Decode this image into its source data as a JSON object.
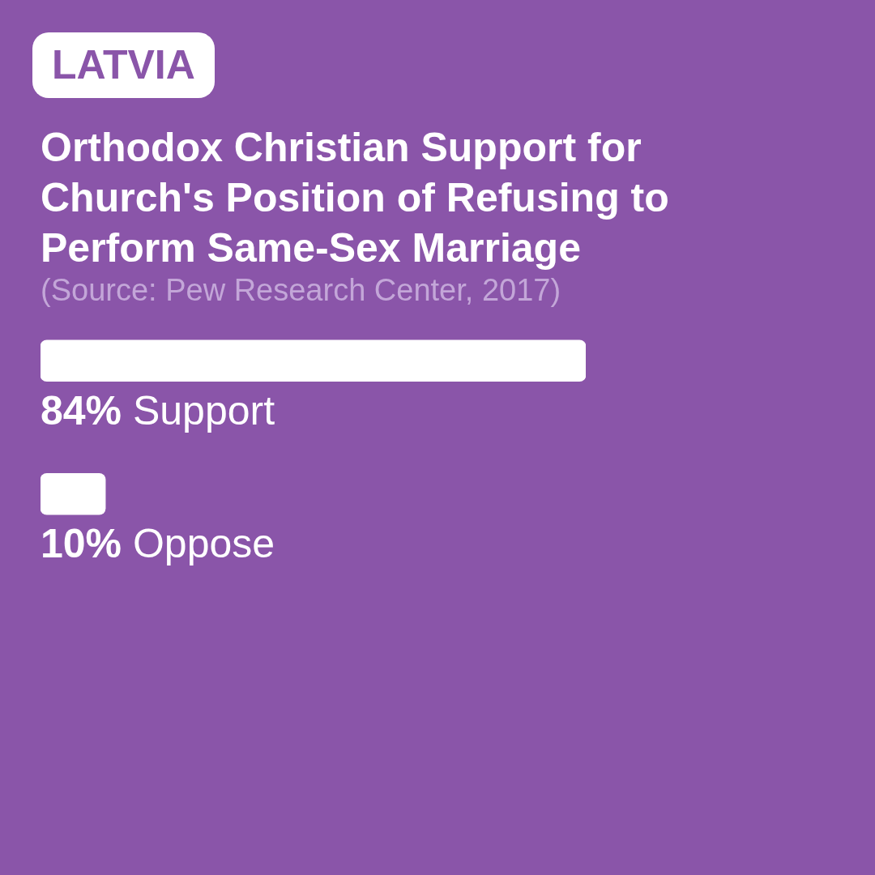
{
  "chart_data": {
    "type": "bar",
    "orientation": "horizontal",
    "subtitle": "LATVIA",
    "title": "Orthodox Christian Support for Church's Position of Refusing to Perform Same-Sex Marriage",
    "annotations": [
      "(Source: Pew Research Center, 2017)"
    ],
    "categories": [
      "Support",
      "Oppose"
    ],
    "values": [
      84,
      10
    ],
    "value_labels": [
      "84%",
      "10%"
    ],
    "color": "#ffffff",
    "tick_labels": false
  }
}
